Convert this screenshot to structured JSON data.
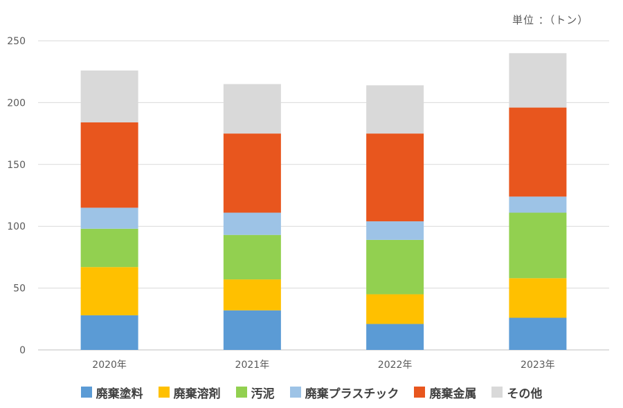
{
  "unit_label": "単位 ：（トン）",
  "chart_data": {
    "type": "bar",
    "stacked": true,
    "categories": [
      "2020年",
      "2021年",
      "2022年",
      "2023年"
    ],
    "series": [
      {
        "name": "廃棄塗料",
        "color": "#5b9bd5",
        "values": [
          28,
          32,
          21,
          26
        ]
      },
      {
        "name": "廃棄溶剤",
        "color": "#ffc000",
        "values": [
          39,
          25,
          24,
          32
        ]
      },
      {
        "name": "汚泥",
        "color": "#92d050",
        "values": [
          31,
          36,
          44,
          53
        ]
      },
      {
        "name": "廃棄プラスチック",
        "color": "#9dc3e6",
        "values": [
          17,
          18,
          15,
          13
        ]
      },
      {
        "name": "廃棄金属",
        "color": "#e8561e",
        "values": [
          69,
          64,
          71,
          72
        ]
      },
      {
        "name": "その他",
        "color": "#d9d9d9",
        "values": [
          42,
          40,
          39,
          44
        ]
      }
    ],
    "yticks": [
      0,
      50,
      100,
      150,
      200,
      250
    ],
    "ylim": [
      0,
      250
    ],
    "grid": true,
    "legend": "bottom"
  }
}
